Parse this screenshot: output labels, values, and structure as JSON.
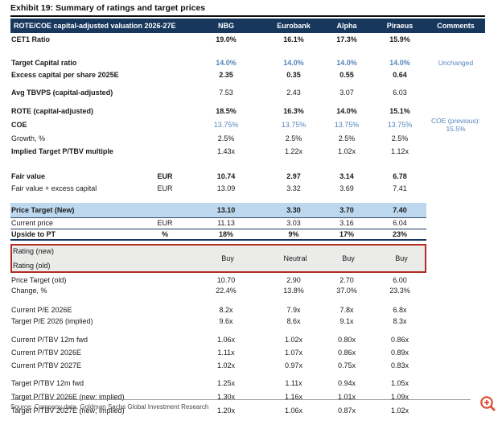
{
  "title": "Exhibit 19: Summary of ratings and target prices",
  "table": {
    "header": {
      "label": "ROTE/COE capital-adjusted valuation 2026-27E",
      "columns": [
        "NBG",
        "Eurobank",
        "Alpha",
        "Piraeus",
        "Comments"
      ]
    },
    "rows": [
      {
        "label": "CET1 Ratio",
        "unit": "",
        "values": [
          "19.0%",
          "16.1%",
          "17.3%",
          "15.9%"
        ],
        "flags": "bl bv",
        "h": 16
      },
      {
        "type": "spacer",
        "h": 14
      },
      {
        "label": "Target Capital ratio",
        "unit": "",
        "values": [
          "14.0%",
          "14.0%",
          "14.0%",
          "14.0%"
        ],
        "comment": [
          "Unchanged"
        ],
        "flags": "bl bv blue",
        "h": 15
      },
      {
        "label": "Excess capital per share 2025E",
        "unit": "",
        "values": [
          "2.35",
          "0.35",
          "0.55",
          "0.64"
        ],
        "flags": "bl bv",
        "h": 15
      },
      {
        "type": "spacer",
        "h": 6
      },
      {
        "label": "Avg TBVPS (capital-adjusted)",
        "unit": "",
        "values": [
          "7.53",
          "2.43",
          "3.07",
          "6.03"
        ],
        "flags": "bl",
        "h": 16
      },
      {
        "type": "spacer",
        "h": 7
      },
      {
        "label": "ROTE (capital-adjusted)",
        "unit": "",
        "values": [
          "18.5%",
          "16.3%",
          "14.0%",
          "15.1%"
        ],
        "flags": "bl bv",
        "h": 16
      },
      {
        "label": "COE",
        "unit": "",
        "values": [
          "13.75%",
          "13.75%",
          "13.75%",
          "13.75%"
        ],
        "comment": [
          "COE (previous):",
          "15.5%"
        ],
        "flags": "bl blue",
        "h": 18
      },
      {
        "label": "Growth, %",
        "unit": "",
        "values": [
          "2.5%",
          "2.5%",
          "2.5%",
          "2.5%"
        ],
        "flags": "",
        "h": 16
      },
      {
        "label": "Implied Target P/TBV multiple",
        "unit": "",
        "values": [
          "1.43x",
          "1.22x",
          "1.02x",
          "1.12x"
        ],
        "flags": "bl",
        "h": 16
      },
      {
        "type": "spacer",
        "h": 16
      },
      {
        "label": "Fair value",
        "unit": "EUR",
        "values": [
          "10.74",
          "2.97",
          "3.14",
          "6.78"
        ],
        "flags": "bl bv",
        "h": 15
      },
      {
        "label": "Fair value + excess capital",
        "unit": "EUR",
        "values": [
          "13.09",
          "3.32",
          "3.69",
          "7.41"
        ],
        "flags": "",
        "h": 15
      },
      {
        "type": "spacer",
        "h": 10
      },
      {
        "label": "Price Target (New)",
        "unit": "",
        "values": [
          "13.10",
          "3.30",
          "3.70",
          "7.40"
        ],
        "flags": "bl bv hl",
        "h": 18
      },
      {
        "label": "Current price",
        "unit": "EUR",
        "values": [
          "11.13",
          "3.03",
          "3.16",
          "6.04"
        ],
        "flags": "bt1",
        "h": 14
      },
      {
        "label": "Upside to PT",
        "unit": "%",
        "values": [
          "18%",
          "9%",
          "17%",
          "23%"
        ],
        "flags": "bl bv bt2 bb2",
        "h": 15
      },
      {
        "type": "rating"
      },
      {
        "label": "Price Target (old)",
        "unit": "",
        "values": [
          "10.70",
          "2.90",
          "2.70",
          "6.00"
        ],
        "flags": "",
        "h": 13
      },
      {
        "label": "Change, %",
        "unit": "",
        "values": [
          "22.4%",
          "13.8%",
          "37.0%",
          "23.3%"
        ],
        "flags": "",
        "h": 13
      },
      {
        "type": "spacer",
        "h": 10
      },
      {
        "label": "Current P/E 2026E",
        "unit": "",
        "values": [
          "8.2x",
          "7.9x",
          "7.8x",
          "6.8x"
        ],
        "flags": "",
        "h": 14
      },
      {
        "label": "Target P/E 2026 (implied)",
        "unit": "",
        "values": [
          "9.6x",
          "8.6x",
          "9.1x",
          "8.3x"
        ],
        "flags": "",
        "h": 14
      },
      {
        "type": "spacer",
        "h": 8
      },
      {
        "label": "Current P/TBV 12m fwd",
        "unit": "",
        "values": [
          "1.06x",
          "1.02x",
          "0.80x",
          "0.86x"
        ],
        "flags": "",
        "h": 16
      },
      {
        "label": "Current P/TBV 2026E",
        "unit": "",
        "values": [
          "1.11x",
          "1.07x",
          "0.86x",
          "0.89x"
        ],
        "flags": "",
        "h": 16
      },
      {
        "label": "Current P/TBV 2027E",
        "unit": "",
        "values": [
          "1.02x",
          "0.97x",
          "0.75x",
          "0.83x"
        ],
        "flags": "",
        "h": 16
      },
      {
        "type": "spacer",
        "h": 6
      },
      {
        "label": "Target P/TBV 12m fwd",
        "unit": "",
        "values": [
          "1.25x",
          "1.11x",
          "0.94x",
          "1.05x"
        ],
        "flags": "",
        "h": 17
      },
      {
        "label": "Target P/TBV 2026E (new; implied)",
        "unit": "",
        "values": [
          "1.30x",
          "1.16x",
          "1.01x",
          "1.09x"
        ],
        "flags": "",
        "h": 17
      },
      {
        "label": "Target P/TBV 2027E (new; implied)",
        "unit": "",
        "values": [
          "1.20x",
          "1.06x",
          "0.87x",
          "1.02x"
        ],
        "flags": "",
        "h": 17
      }
    ]
  },
  "rating_box": {
    "label_new": "Rating (new)",
    "label_old": "Rating (old)",
    "values": [
      "Buy",
      "Neutral",
      "Buy",
      "Buy"
    ]
  },
  "footer": {
    "source": "Source: Company data, Goldman Sachs Global Investment Research"
  },
  "icons": {
    "zoom": "zoom-plus-icon"
  },
  "colors": {
    "header_navy": "#17375D",
    "accent_blue_text": "#5585BB",
    "highlight_row": "#BDD7EE",
    "rating_border_red": "#B12A23",
    "rating_bg_gray": "#EBEBEA",
    "zoom_icon_orange": "#E0492E"
  }
}
